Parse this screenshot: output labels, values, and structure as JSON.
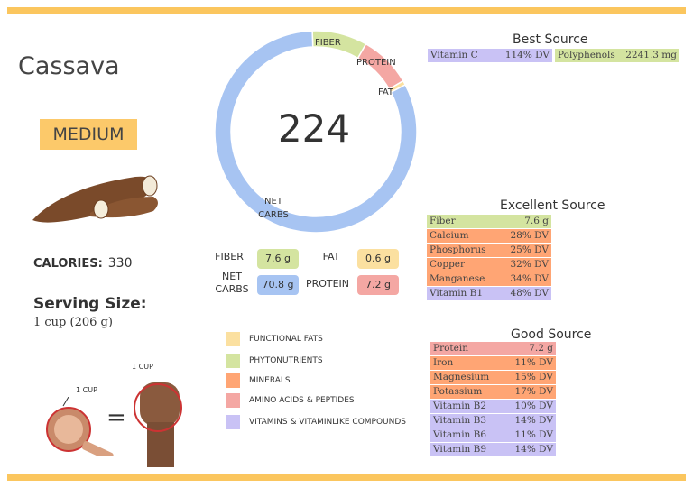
{
  "title": "Cassava",
  "size_badge": "MEDIUM",
  "calories_label": "CALORIES:",
  "calories_value": "330",
  "serving_label": "Serving Size:",
  "serving_value": "1 cup (206 g)",
  "cup_label": "1 CUP",
  "fist_label": "1 CUP",
  "equals": "=",
  "colors": {
    "accent": "#fbc65e",
    "fiber": "#d4e4a0",
    "protein": "#f4a7a3",
    "fat": "#fbe0a0",
    "carbs": "#a7c4f2",
    "minerals": "#ffa574",
    "vitamins": "#c9c2f5"
  },
  "chart_data": {
    "type": "pie",
    "center_label": "224",
    "categories": [
      "FIBER",
      "PROTEIN",
      "FAT",
      "NET CARBS"
    ],
    "values": [
      7.6,
      7.2,
      0.6,
      70.8
    ],
    "unit": "g"
  },
  "macros": [
    {
      "label": "FIBER",
      "value": "7.6 g"
    },
    {
      "label": "FAT",
      "value": "0.6 g"
    },
    {
      "label": "NET CARBS",
      "value": "70.8 g"
    },
    {
      "label": "PROTEIN",
      "value": "7.2 g"
    }
  ],
  "legend": [
    "FUNCTIONAL FATS",
    "PHYTONUTRIENTS",
    "MINERALS",
    "AMINO ACIDS & PEPTIDES",
    "VITAMINS & VITAMINLIKE COMPOUNDS"
  ],
  "best": {
    "title": "Best Source",
    "items": [
      {
        "name": "Vitamin C",
        "value": "114% DV",
        "type": "vitamins"
      },
      {
        "name": "Polyphenols",
        "value": "2241.3 mg",
        "type": "fiber"
      }
    ]
  },
  "excellent": {
    "title": "Excellent Source",
    "items": [
      {
        "name": "Fiber",
        "value": "7.6 g",
        "type": "fiber"
      },
      {
        "name": "Calcium",
        "value": "28% DV",
        "type": "minerals"
      },
      {
        "name": "Phosphorus",
        "value": "25% DV",
        "type": "minerals"
      },
      {
        "name": "Copper",
        "value": "32% DV",
        "type": "minerals"
      },
      {
        "name": "Manganese",
        "value": "34% DV",
        "type": "minerals"
      },
      {
        "name": "Vitamin B1",
        "value": "48% DV",
        "type": "vitamins"
      }
    ]
  },
  "good": {
    "title": "Good Source",
    "items": [
      {
        "name": "Protein",
        "value": "7.2 g",
        "type": "protein"
      },
      {
        "name": "Iron",
        "value": "11% DV",
        "type": "minerals"
      },
      {
        "name": "Magnesium",
        "value": "15% DV",
        "type": "minerals"
      },
      {
        "name": "Potassium",
        "value": "17% DV",
        "type": "minerals"
      },
      {
        "name": "Vitamin B2",
        "value": "10% DV",
        "type": "vitamins"
      },
      {
        "name": "Vitamin B3",
        "value": "14% DV",
        "type": "vitamins"
      },
      {
        "name": "Vitamin B6",
        "value": "11% DV",
        "type": "vitamins"
      },
      {
        "name": "Vitamin B9",
        "value": "14% DV",
        "type": "vitamins"
      }
    ]
  }
}
